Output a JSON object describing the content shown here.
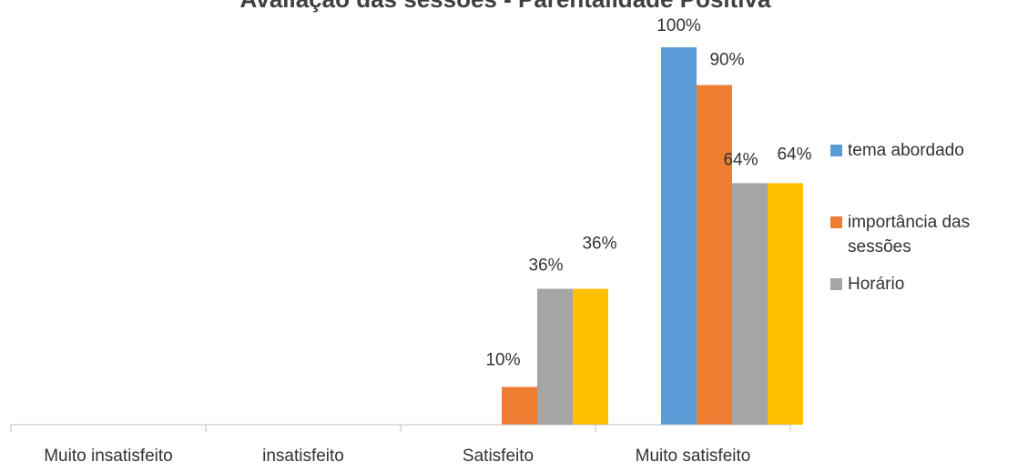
{
  "chart_data": {
    "type": "bar",
    "title": "Avaliação das sessões - Parentalidade Positiva",
    "xlabel": "",
    "ylabel": "",
    "ylim": [
      0,
      100
    ],
    "grid": false,
    "legend_position": "right",
    "categories": [
      "Muito insatisfeito",
      "insatisfeito",
      "Satisfeito",
      "Muito satisfeito"
    ],
    "series": [
      {
        "name": "tema abordado",
        "color": "#5b9bd5",
        "values": [
          null,
          null,
          null,
          100
        ],
        "labels": [
          "",
          "",
          "",
          "100%"
        ]
      },
      {
        "name": "importância das sessões",
        "legend_lines": [
          "importância das",
          "sessões"
        ],
        "color": "#ed7d31",
        "values": [
          null,
          null,
          10,
          90
        ],
        "labels": [
          "",
          "",
          "10%",
          "90%"
        ]
      },
      {
        "name": "Horário",
        "color": "#a5a5a5",
        "values": [
          null,
          null,
          36,
          64
        ],
        "labels": [
          "",
          "",
          "36%",
          "64%"
        ]
      },
      {
        "name": "",
        "color": "#ffc000",
        "values": [
          null,
          null,
          36,
          64
        ],
        "labels": [
          "",
          "",
          "36%",
          "64%"
        ]
      }
    ]
  }
}
